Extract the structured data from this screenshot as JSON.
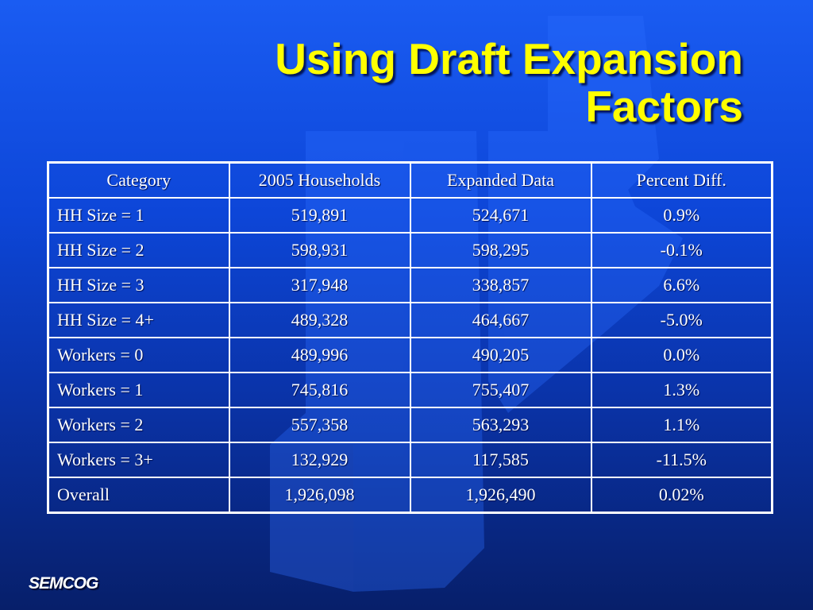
{
  "slide": {
    "title_line1": "Using Draft Expansion",
    "title_line2": "Factors",
    "logo_text": "SEMCOG"
  },
  "table": {
    "headers": [
      "Category",
      "2005 Households",
      "Expanded Data",
      "Percent Diff."
    ],
    "rows": [
      [
        "HH Size = 1",
        "519,891",
        "524,671",
        "0.9%"
      ],
      [
        "HH Size = 2",
        "598,931",
        "598,295",
        "-0.1%"
      ],
      [
        "HH Size = 3",
        "317,948",
        "338,857",
        "6.6%"
      ],
      [
        "HH Size = 4+",
        "489,328",
        "464,667",
        "-5.0%"
      ],
      [
        "Workers = 0",
        "489,996",
        "490,205",
        "0.0%"
      ],
      [
        "Workers = 1",
        "745,816",
        "755,407",
        "1.3%"
      ],
      [
        "Workers = 2",
        "557,358",
        "563,293",
        "1.1%"
      ],
      [
        "Workers = 3+",
        "132,929",
        "117,585",
        "-11.5%"
      ],
      [
        "Overall",
        "1,926,098",
        "1,926,490",
        "0.02%"
      ]
    ]
  },
  "colors": {
    "title": "#ffff00",
    "background": "#0d46d8",
    "table_border": "#ffffff"
  }
}
